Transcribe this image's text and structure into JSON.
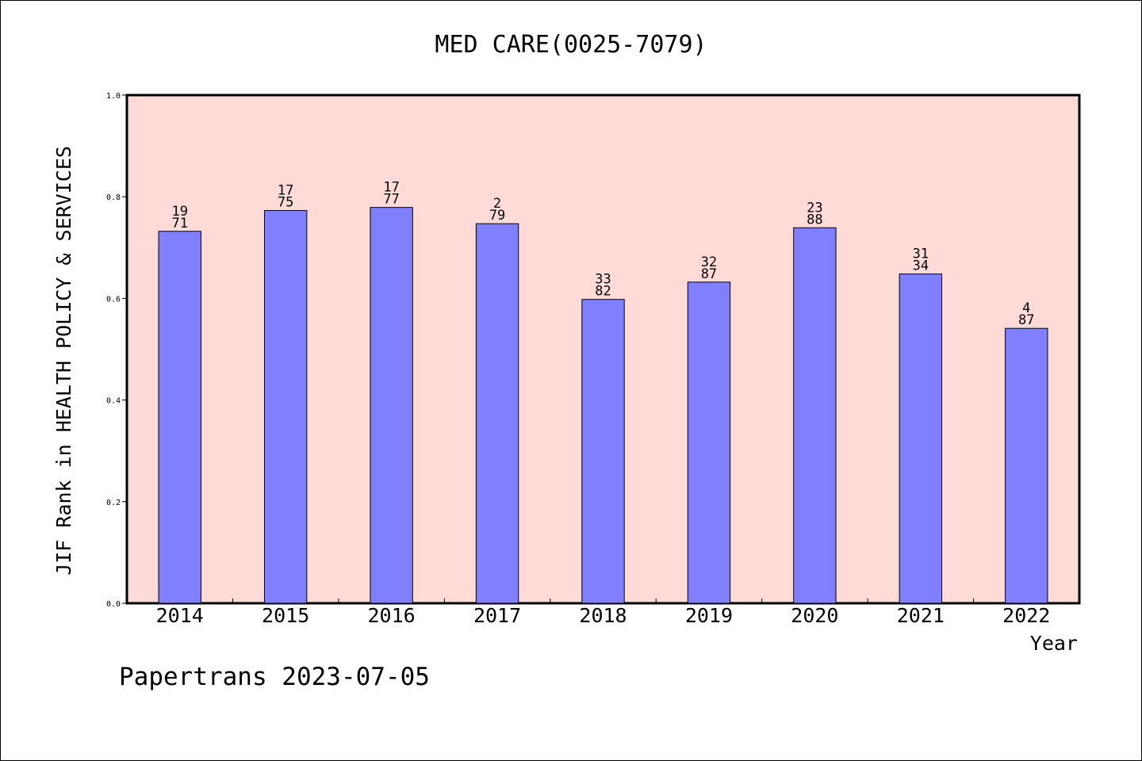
{
  "chart_data": {
    "type": "bar",
    "title": "MED CARE(0025-7079)",
    "xlabel": "Year",
    "ylabel": "JIF Rank in HEALTH POLICY & SERVICES",
    "footer": "Papertrans 2023-07-05",
    "categories": [
      "2014",
      "2015",
      "2016",
      "2017",
      "2018",
      "2019",
      "2020",
      "2021",
      "2022"
    ],
    "values": [
      0.732,
      0.773,
      0.779,
      0.747,
      0.598,
      0.632,
      0.739,
      0.648,
      0.541
    ],
    "labels_top": [
      "19",
      "17",
      "17",
      "2",
      "33",
      "32",
      "23",
      "31",
      "4"
    ],
    "labels_bottom": [
      "71",
      "75",
      "77",
      "79",
      "82",
      "87",
      "88",
      "34",
      "87"
    ],
    "yticks": [
      "0.0",
      "0.2",
      "0.4",
      "0.6",
      "0.8",
      "1.0"
    ],
    "ylim": [
      0,
      1
    ],
    "grid": false,
    "colors": {
      "plot_bg": "#ffdbd8",
      "bar": "#8080ff",
      "axis": "#000000"
    }
  }
}
